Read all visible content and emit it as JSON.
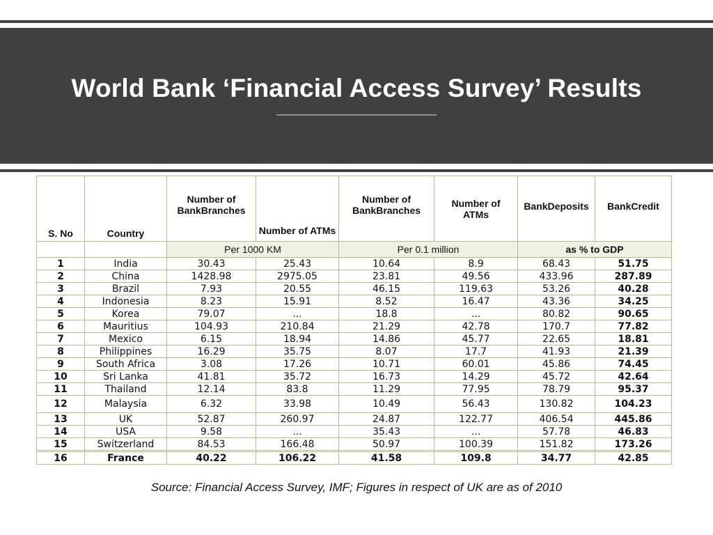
{
  "title": "World Bank ‘Financial Access Survey’ Results",
  "colors": {
    "banner": "#404040",
    "grid": "#a9c08a",
    "subheader_bg": "#edf2e4"
  },
  "table": {
    "headers": {
      "sno": "S. No",
      "country": "Country",
      "branches_km": "Number of BankBranches",
      "atms_km": "Number of ATMs",
      "branches_pop": "Number of BankBranches",
      "atms_pop": "Number of ATMs",
      "deposits": "BankDeposits",
      "credit": "BankCredit"
    },
    "units": {
      "per_km": "Per 1000 KM",
      "per_pop": "Per 0.1 million",
      "gdp": "as % to GDP"
    },
    "rows": [
      {
        "sno": "1",
        "country": "India",
        "branches_km": "30.43",
        "atms_km": "25.43",
        "branches_pop": "10.64",
        "atms_pop": "8.9",
        "deposits": "68.43",
        "credit": "51.75"
      },
      {
        "sno": "2",
        "country": "China",
        "branches_km": "1428.98",
        "atms_km": "2975.05",
        "branches_pop": "23.81",
        "atms_pop": "49.56",
        "deposits": "433.96",
        "credit": "287.89"
      },
      {
        "sno": "3",
        "country": "Brazil",
        "branches_km": "7.93",
        "atms_km": "20.55",
        "branches_pop": "46.15",
        "atms_pop": "119.63",
        "deposits": "53.26",
        "credit": "40.28"
      },
      {
        "sno": "4",
        "country": "Indonesia",
        "branches_km": "8.23",
        "atms_km": "15.91",
        "branches_pop": "8.52",
        "atms_pop": "16.47",
        "deposits": "43.36",
        "credit": "34.25"
      },
      {
        "sno": "5",
        "country": "Korea",
        "branches_km": "79.07",
        "atms_km": "...",
        "branches_pop": "18.8",
        "atms_pop": "...",
        "deposits": "80.82",
        "credit": "90.65"
      },
      {
        "sno": "6",
        "country": "Mauritius",
        "branches_km": "104.93",
        "atms_km": "210.84",
        "branches_pop": "21.29",
        "atms_pop": "42.78",
        "deposits": "170.7",
        "credit": "77.82"
      },
      {
        "sno": "7",
        "country": "Mexico",
        "branches_km": "6.15",
        "atms_km": "18.94",
        "branches_pop": "14.86",
        "atms_pop": "45.77",
        "deposits": "22.65",
        "credit": "18.81"
      },
      {
        "sno": "8",
        "country": "Philippines",
        "branches_km": "16.29",
        "atms_km": "35.75",
        "branches_pop": "8.07",
        "atms_pop": "17.7",
        "deposits": "41.93",
        "credit": "21.39"
      },
      {
        "sno": "9",
        "country": "South Africa",
        "branches_km": "3.08",
        "atms_km": "17.26",
        "branches_pop": "10.71",
        "atms_pop": "60.01",
        "deposits": "45.86",
        "credit": "74.45"
      },
      {
        "sno": "10",
        "country": "Sri Lanka",
        "branches_km": "41.81",
        "atms_km": "35.72",
        "branches_pop": "16.73",
        "atms_pop": "14.29",
        "deposits": "45.72",
        "credit": "42.64"
      },
      {
        "sno": "11",
        "country": "Thailand",
        "branches_km": "12.14",
        "atms_km": "83.8",
        "branches_pop": "11.29",
        "atms_pop": "77.95",
        "deposits": "78.79",
        "credit": "95.37"
      },
      {
        "sno": "12",
        "country": "Malaysia",
        "branches_km": "6.32",
        "atms_km": "33.98",
        "branches_pop": "10.49",
        "atms_pop": "56.43",
        "deposits": "130.82",
        "credit": "104.23"
      },
      {
        "sno": "13",
        "country": "UK",
        "branches_km": "52.87",
        "atms_km": "260.97",
        "branches_pop": "24.87",
        "atms_pop": "122.77",
        "deposits": "406.54",
        "credit": "445.86"
      },
      {
        "sno": "14",
        "country": "USA",
        "branches_km": "9.58",
        "atms_km": "...",
        "branches_pop": "35.43",
        "atms_pop": "...",
        "deposits": "57.78",
        "credit": "46.83"
      },
      {
        "sno": "15",
        "country": "Switzerland",
        "branches_km": "84.53",
        "atms_km": "166.48",
        "branches_pop": "50.97",
        "atms_pop": "100.39",
        "deposits": "151.82",
        "credit": "173.26"
      },
      {
        "sno": "16",
        "country": "France",
        "branches_km": "40.22",
        "atms_km": "106.22",
        "branches_pop": "41.58",
        "atms_pop": "109.8",
        "deposits": "34.77",
        "credit": "42.85"
      }
    ]
  },
  "source": "Source: Financial Access Survey, IMF; Figures in respect of UK are as of 2010"
}
